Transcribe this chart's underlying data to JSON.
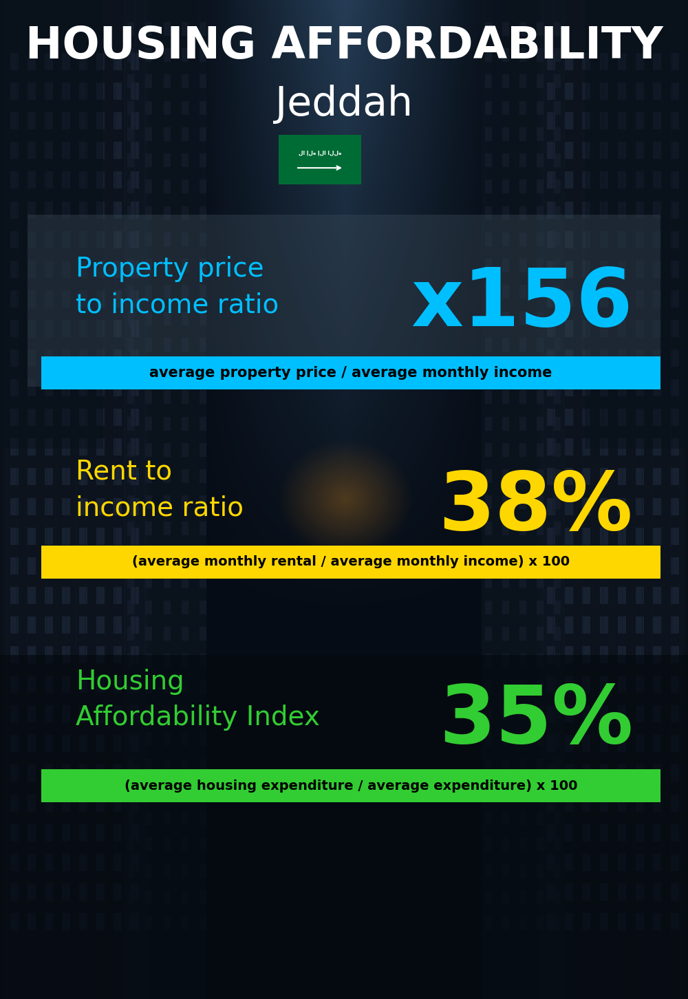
{
  "title_line1": "HOUSING AFFORDABILITY",
  "title_line2": "Jeddah",
  "bg_color": "#080e18",
  "title_color": "#ffffff",
  "subtitle_color": "#ffffff",
  "section1_label": "Property price\nto income ratio",
  "section1_value": "x156",
  "section1_label_color": "#00bfff",
  "section1_value_color": "#00bfff",
  "section1_formula": "average property price / average monthly income",
  "section1_formula_bg": "#00bfff",
  "section1_formula_color": "#000000",
  "section2_label": "Rent to\nincome ratio",
  "section2_value": "38%",
  "section2_label_color": "#ffd700",
  "section2_value_color": "#ffd700",
  "section2_formula": "(average monthly rental / average monthly income) x 100",
  "section2_formula_bg": "#ffd700",
  "section2_formula_color": "#000000",
  "section3_label": "Housing\nAffordability Index",
  "section3_value": "35%",
  "section3_label_color": "#32cd32",
  "section3_value_color": "#32cd32",
  "section3_formula": "(average housing expenditure / average expenditure) x 100",
  "section3_formula_bg": "#32cd32",
  "section3_formula_color": "#000000",
  "flag_color_green": "#006c35",
  "flag_color_white": "#ffffff"
}
